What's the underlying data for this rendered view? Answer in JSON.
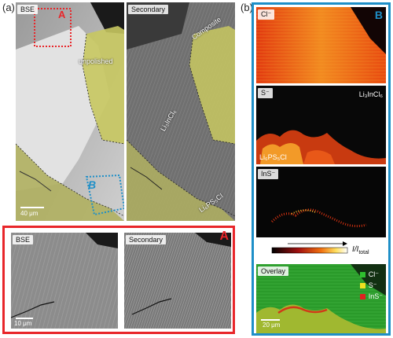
{
  "panel_a": {
    "letter": "(a)",
    "bse_label": "BSE",
    "secondary_label": "Secondary",
    "region_a": "A",
    "region_b": "B",
    "unpolished": "unpolished",
    "composite": "Composite",
    "li3incl6": "Li₃InCl₆",
    "li6ps5cl": "Li₆PS₅Cl",
    "scale_top": "40 μm",
    "zoom_bse": "BSE",
    "zoom_secondary": "Secondary",
    "zoom_letter": "A",
    "scale_zoom": "10 μm"
  },
  "panel_b": {
    "letter": "(b)",
    "region_letter": "B",
    "cl_label": "Cl⁻",
    "s_label": "S⁻",
    "li3incl6": "Li₃InCl₆",
    "li6ps5cl": "Li₆PS₅Cl",
    "ins_label": "InS⁻",
    "colorbar_label": "I/I",
    "colorbar_sub": "total",
    "overlay_label": "Overlay",
    "legend": [
      {
        "label": "Cl⁻",
        "color": "#2fbf2f"
      },
      {
        "label": "S⁻",
        "color": "#f0e020"
      },
      {
        "label": "InS⁻",
        "color": "#e02020"
      }
    ],
    "scale": "20 μm"
  },
  "colors": {
    "red_frame": "#e8262a",
    "blue_frame": "#1e8fc8",
    "yellow_overlay": "#d8d860"
  }
}
